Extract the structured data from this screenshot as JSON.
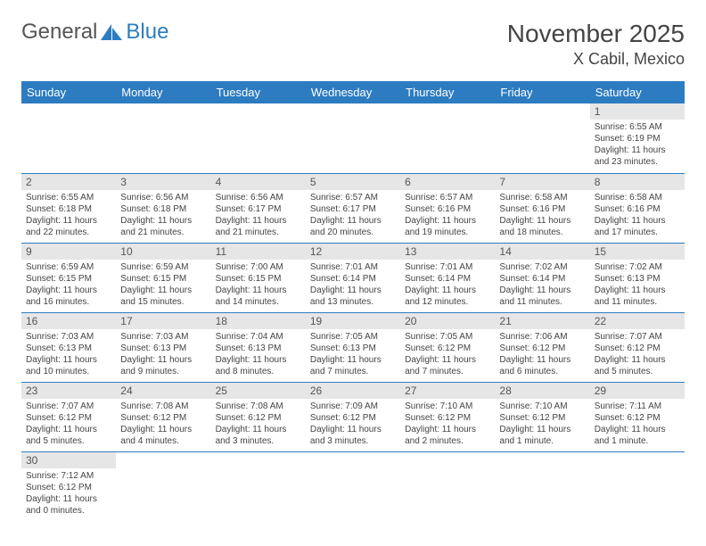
{
  "brand": {
    "part1": "General",
    "part2": "Blue"
  },
  "title": "November 2025",
  "location": "X Cabil, Mexico",
  "headers": [
    "Sunday",
    "Monday",
    "Tuesday",
    "Wednesday",
    "Thursday",
    "Friday",
    "Saturday"
  ],
  "colors": {
    "header_bg": "#2d7cc1",
    "header_fg": "#ffffff",
    "daynum_bg": "#e6e6e6",
    "border": "#2d7cc1",
    "text": "#444444"
  },
  "weeks": [
    [
      null,
      null,
      null,
      null,
      null,
      null,
      {
        "n": "1",
        "sr": "6:55 AM",
        "ss": "6:19 PM",
        "dl": "11 hours and 23 minutes."
      }
    ],
    [
      {
        "n": "2",
        "sr": "6:55 AM",
        "ss": "6:18 PM",
        "dl": "11 hours and 22 minutes."
      },
      {
        "n": "3",
        "sr": "6:56 AM",
        "ss": "6:18 PM",
        "dl": "11 hours and 21 minutes."
      },
      {
        "n": "4",
        "sr": "6:56 AM",
        "ss": "6:17 PM",
        "dl": "11 hours and 21 minutes."
      },
      {
        "n": "5",
        "sr": "6:57 AM",
        "ss": "6:17 PM",
        "dl": "11 hours and 20 minutes."
      },
      {
        "n": "6",
        "sr": "6:57 AM",
        "ss": "6:16 PM",
        "dl": "11 hours and 19 minutes."
      },
      {
        "n": "7",
        "sr": "6:58 AM",
        "ss": "6:16 PM",
        "dl": "11 hours and 18 minutes."
      },
      {
        "n": "8",
        "sr": "6:58 AM",
        "ss": "6:16 PM",
        "dl": "11 hours and 17 minutes."
      }
    ],
    [
      {
        "n": "9",
        "sr": "6:59 AM",
        "ss": "6:15 PM",
        "dl": "11 hours and 16 minutes."
      },
      {
        "n": "10",
        "sr": "6:59 AM",
        "ss": "6:15 PM",
        "dl": "11 hours and 15 minutes."
      },
      {
        "n": "11",
        "sr": "7:00 AM",
        "ss": "6:15 PM",
        "dl": "11 hours and 14 minutes."
      },
      {
        "n": "12",
        "sr": "7:01 AM",
        "ss": "6:14 PM",
        "dl": "11 hours and 13 minutes."
      },
      {
        "n": "13",
        "sr": "7:01 AM",
        "ss": "6:14 PM",
        "dl": "11 hours and 12 minutes."
      },
      {
        "n": "14",
        "sr": "7:02 AM",
        "ss": "6:14 PM",
        "dl": "11 hours and 11 minutes."
      },
      {
        "n": "15",
        "sr": "7:02 AM",
        "ss": "6:13 PM",
        "dl": "11 hours and 11 minutes."
      }
    ],
    [
      {
        "n": "16",
        "sr": "7:03 AM",
        "ss": "6:13 PM",
        "dl": "11 hours and 10 minutes."
      },
      {
        "n": "17",
        "sr": "7:03 AM",
        "ss": "6:13 PM",
        "dl": "11 hours and 9 minutes."
      },
      {
        "n": "18",
        "sr": "7:04 AM",
        "ss": "6:13 PM",
        "dl": "11 hours and 8 minutes."
      },
      {
        "n": "19",
        "sr": "7:05 AM",
        "ss": "6:13 PM",
        "dl": "11 hours and 7 minutes."
      },
      {
        "n": "20",
        "sr": "7:05 AM",
        "ss": "6:12 PM",
        "dl": "11 hours and 7 minutes."
      },
      {
        "n": "21",
        "sr": "7:06 AM",
        "ss": "6:12 PM",
        "dl": "11 hours and 6 minutes."
      },
      {
        "n": "22",
        "sr": "7:07 AM",
        "ss": "6:12 PM",
        "dl": "11 hours and 5 minutes."
      }
    ],
    [
      {
        "n": "23",
        "sr": "7:07 AM",
        "ss": "6:12 PM",
        "dl": "11 hours and 5 minutes."
      },
      {
        "n": "24",
        "sr": "7:08 AM",
        "ss": "6:12 PM",
        "dl": "11 hours and 4 minutes."
      },
      {
        "n": "25",
        "sr": "7:08 AM",
        "ss": "6:12 PM",
        "dl": "11 hours and 3 minutes."
      },
      {
        "n": "26",
        "sr": "7:09 AM",
        "ss": "6:12 PM",
        "dl": "11 hours and 3 minutes."
      },
      {
        "n": "27",
        "sr": "7:10 AM",
        "ss": "6:12 PM",
        "dl": "11 hours and 2 minutes."
      },
      {
        "n": "28",
        "sr": "7:10 AM",
        "ss": "6:12 PM",
        "dl": "11 hours and 1 minute."
      },
      {
        "n": "29",
        "sr": "7:11 AM",
        "ss": "6:12 PM",
        "dl": "11 hours and 1 minute."
      }
    ],
    [
      {
        "n": "30",
        "sr": "7:12 AM",
        "ss": "6:12 PM",
        "dl": "11 hours and 0 minutes."
      },
      null,
      null,
      null,
      null,
      null,
      null
    ]
  ],
  "labels": {
    "sunrise": "Sunrise: ",
    "sunset": "Sunset: ",
    "daylight": "Daylight: "
  }
}
